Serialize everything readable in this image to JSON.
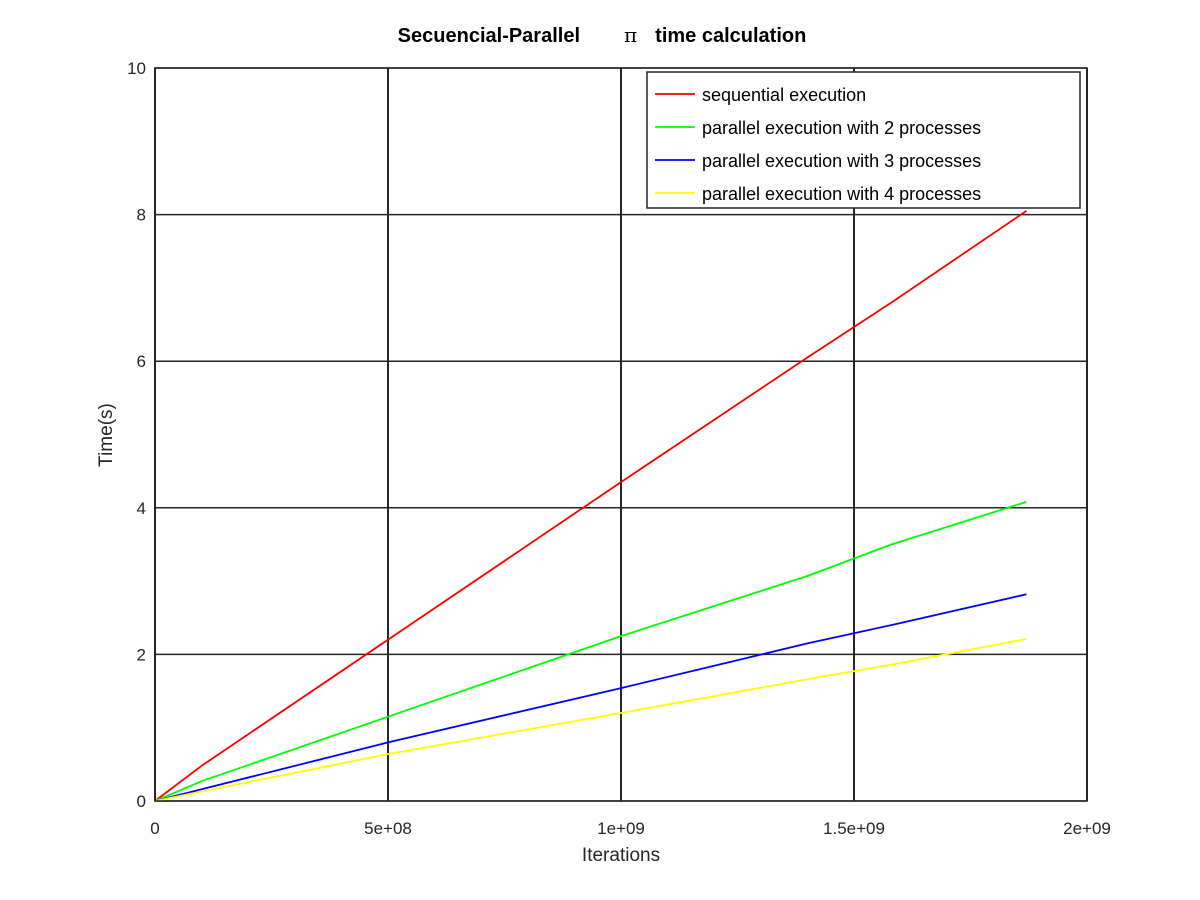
{
  "chart_data": {
    "type": "line",
    "title_left": "Secuencial-Parallel",
    "title_symbol": "π",
    "title_right": "time calculation",
    "xlabel": "Iterations",
    "ylabel": "Time(s)",
    "xlim": [
      0,
      2000000000
    ],
    "ylim": [
      0,
      10
    ],
    "x_ticks": [
      0,
      500000000,
      1000000000,
      1500000000,
      2000000000
    ],
    "x_tick_labels": [
      "0",
      "5e+08",
      "1e+09",
      "1.5e+09",
      "2e+09"
    ],
    "y_ticks": [
      0,
      2,
      4,
      6,
      8,
      10
    ],
    "y_tick_labels": [
      "0",
      "2",
      "4",
      "6",
      "8",
      "10"
    ],
    "grid": true,
    "legend_position": "top-right",
    "x": [
      0,
      100000000,
      500000000,
      1000000000,
      1400000000,
      1580000000,
      1870000000
    ],
    "series": [
      {
        "name": "sequential execution",
        "color": "#ff0000",
        "values": [
          0,
          0.48,
          2.2,
          4.35,
          6.05,
          6.8,
          8.05
        ]
      },
      {
        "name": "parallel execution with 2 processes",
        "color": "#00ff00",
        "values": [
          0,
          0.27,
          1.15,
          2.25,
          3.07,
          3.5,
          4.08
        ]
      },
      {
        "name": "parallel execution with 3 processes",
        "color": "#0000ff",
        "values": [
          0,
          0.16,
          0.8,
          1.54,
          2.15,
          2.4,
          2.82
        ]
      },
      {
        "name": "parallel execution with 4 processes",
        "color": "#ffff00",
        "values": [
          0,
          0.13,
          0.64,
          1.2,
          1.66,
          1.86,
          2.21
        ]
      }
    ]
  }
}
